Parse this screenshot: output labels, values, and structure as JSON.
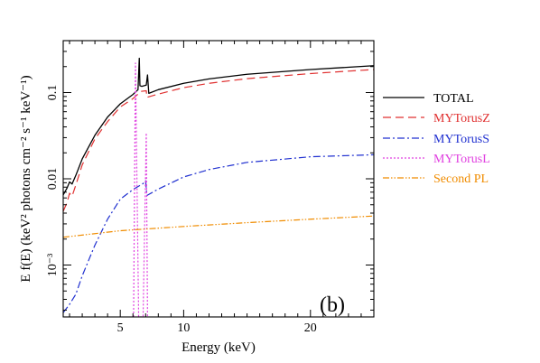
{
  "chart_data": {
    "type": "line",
    "xlabel": "Energy (keV)",
    "ylabel_html": "E f(E) (keV² photons cm⁻² s⁻¹ keV⁻¹)",
    "xlim": [
      0.5,
      25
    ],
    "ylim": [
      0.00025,
      0.4
    ],
    "yscale": "log",
    "x_ticks": [
      5,
      10,
      20
    ],
    "x_tick_labels": [
      "5",
      "10",
      "20"
    ],
    "y_ticks": [
      0.001,
      0.01,
      0.1
    ],
    "y_tick_labels": [
      "10⁻³",
      "0.01",
      "0.1"
    ],
    "panel_label": "(b)",
    "legend_position": "right",
    "series": [
      {
        "name": "TOTAL",
        "color": "#000000",
        "dash": "solid",
        "points": [
          [
            0.5,
            0.0065
          ],
          [
            0.8,
            0.0078
          ],
          [
            1.0,
            0.0092
          ],
          [
            1.2,
            0.0087
          ],
          [
            1.5,
            0.011
          ],
          [
            2,
            0.017
          ],
          [
            3,
            0.032
          ],
          [
            4,
            0.052
          ],
          [
            5,
            0.074
          ],
          [
            6,
            0.095
          ],
          [
            6.4,
            0.108
          ],
          [
            6.5,
            0.25
          ],
          [
            6.55,
            0.12
          ],
          [
            6.7,
            0.118
          ],
          [
            7.05,
            0.122
          ],
          [
            7.15,
            0.16
          ],
          [
            7.25,
            0.098
          ],
          [
            8,
            0.108
          ],
          [
            10,
            0.128
          ],
          [
            12,
            0.144
          ],
          [
            15,
            0.163
          ],
          [
            20,
            0.185
          ],
          [
            25,
            0.205
          ]
        ]
      },
      {
        "name": "MYTorusZ",
        "color": "#e03030",
        "dash": "dashed",
        "points": [
          [
            0.5,
            0.0042
          ],
          [
            0.8,
            0.0053
          ],
          [
            1.0,
            0.0068
          ],
          [
            1.2,
            0.0063
          ],
          [
            1.5,
            0.0085
          ],
          [
            2,
            0.0145
          ],
          [
            3,
            0.029
          ],
          [
            4,
            0.046
          ],
          [
            5,
            0.068
          ],
          [
            6,
            0.085
          ],
          [
            6.4,
            0.096
          ],
          [
            6.5,
            0.1
          ],
          [
            6.6,
            0.103
          ],
          [
            7.05,
            0.105
          ],
          [
            7.1,
            0.088
          ],
          [
            8,
            0.096
          ],
          [
            10,
            0.114
          ],
          [
            12,
            0.128
          ],
          [
            15,
            0.145
          ],
          [
            20,
            0.166
          ],
          [
            25,
            0.185
          ]
        ]
      },
      {
        "name": "MYTorusS",
        "color": "#2030d0",
        "dash": "dashdot",
        "points": [
          [
            0.5,
            0.00028
          ],
          [
            1,
            0.00035
          ],
          [
            1.5,
            0.00046
          ],
          [
            2,
            0.00075
          ],
          [
            3,
            0.0017
          ],
          [
            4,
            0.0034
          ],
          [
            5,
            0.0058
          ],
          [
            6,
            0.0075
          ],
          [
            6.8,
            0.0088
          ],
          [
            7.0,
            0.0095
          ],
          [
            7.1,
            0.0064
          ],
          [
            8,
            0.0076
          ],
          [
            10,
            0.0105
          ],
          [
            12,
            0.0128
          ],
          [
            15,
            0.0155
          ],
          [
            20,
            0.018
          ],
          [
            25,
            0.019
          ]
        ]
      },
      {
        "name": "MYTorusL",
        "color": "#e040e0",
        "dash": "dotted",
        "points": [
          [
            6.05,
            0.00025
          ],
          [
            6.2,
            0.22
          ],
          [
            6.45,
            0.00025
          ],
          [
            6.8,
            0.00025
          ],
          [
            7.05,
            0.034
          ],
          [
            7.15,
            0.00025
          ]
        ]
      },
      {
        "name": "Second PL",
        "color": "#f08c00",
        "dash": "dashdotdot",
        "points": [
          [
            0.5,
            0.0021
          ],
          [
            5,
            0.0025
          ],
          [
            10,
            0.0028
          ],
          [
            15,
            0.0031
          ],
          [
            20,
            0.0034
          ],
          [
            25,
            0.0037
          ]
        ]
      }
    ]
  }
}
